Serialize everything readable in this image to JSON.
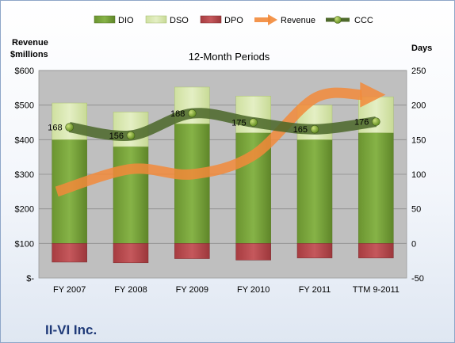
{
  "colors": {
    "dio": "#77a33a",
    "dso": "#d7e6ac",
    "dpo": "#b8464a",
    "revenue": "#f28a3a",
    "ccc": "#4f6a2c",
    "plot_bg": "#bfbfbf",
    "company": "#1f3a78"
  },
  "company_name": "II-VI Inc.",
  "chart_data": {
    "type": "bar",
    "subtitle": "12-Month Periods",
    "categories": [
      "FY 2007",
      "FY 2008",
      "FY 2009",
      "FY 2010",
      "FY 2011",
      "TTM 9-2011"
    ],
    "y_left": {
      "title_line1": "Revenue",
      "title_line2": "$millions",
      "ylim": [
        0,
        600
      ],
      "ticks": [
        0,
        100,
        200,
        300,
        400,
        500,
        600
      ],
      "tick_labels": [
        "$-",
        "$100",
        "$200",
        "$300",
        "$400",
        "$500",
        "$600"
      ]
    },
    "y_right": {
      "title": "Days",
      "ylim": [
        -50,
        250
      ],
      "ticks": [
        -50,
        0,
        50,
        100,
        150,
        200,
        250
      ],
      "tick_labels": [
        "-50",
        "0",
        "50",
        "100",
        "150",
        "200",
        "250"
      ]
    },
    "legend_position": "top",
    "grid": true,
    "series": [
      {
        "name": "DIO",
        "kind": "stacked-bar",
        "axis": "days",
        "values": [
          150,
          140,
          173,
          160,
          150,
          160
        ]
      },
      {
        "name": "DSO",
        "kind": "stacked-bar",
        "axis": "days",
        "values": [
          53,
          50,
          53,
          53,
          50,
          52
        ]
      },
      {
        "name": "DPO",
        "kind": "negative-bar",
        "axis": "days",
        "values": [
          27,
          28,
          22,
          24,
          21,
          21
        ]
      },
      {
        "name": "Revenue",
        "kind": "arrow-line",
        "axis": "revenue",
        "values": [
          250,
          315,
          300,
          355,
          520,
          530
        ]
      },
      {
        "name": "CCC",
        "kind": "line",
        "axis": "days",
        "values": [
          168,
          156,
          188,
          175,
          165,
          176
        ],
        "labels": [
          "168",
          "156",
          "188",
          "175",
          "165",
          "176"
        ]
      }
    ]
  }
}
